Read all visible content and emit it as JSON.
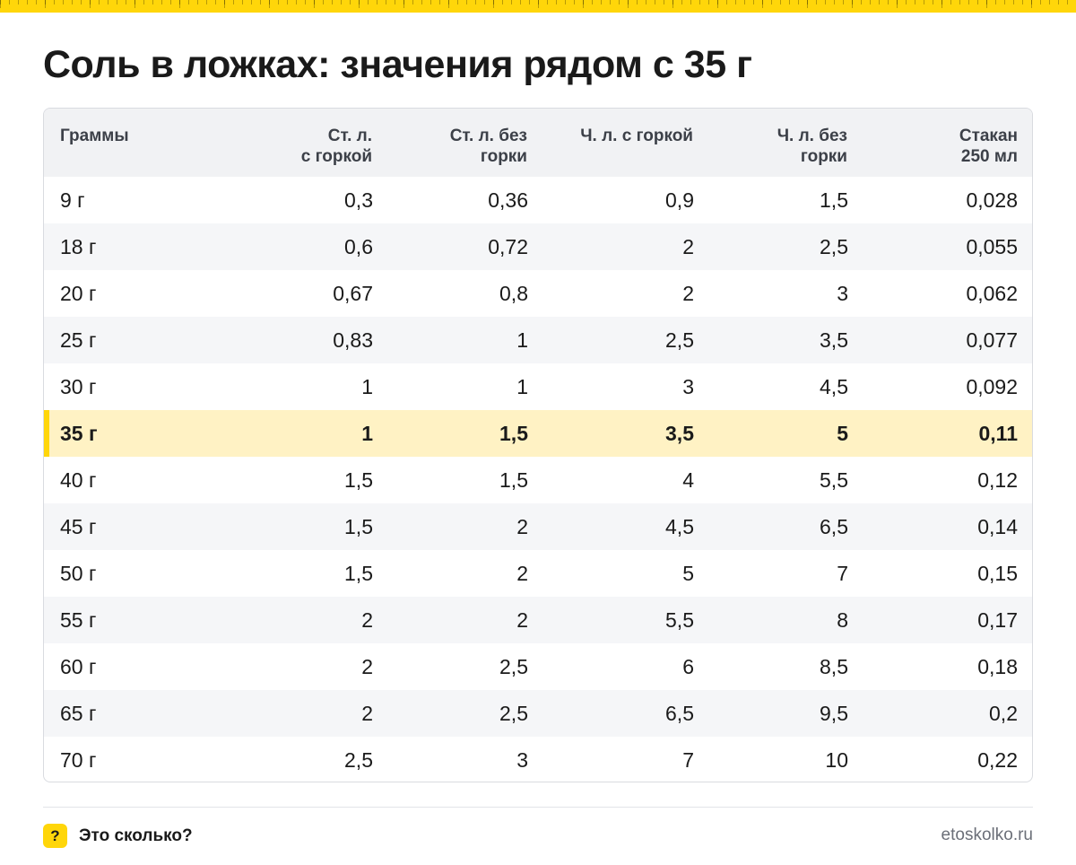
{
  "title": "Соль в ложках: значения рядом с 35 г",
  "table": {
    "headers": [
      [
        "Граммы"
      ],
      [
        "Ст. л.",
        "с горкой"
      ],
      [
        "Ст. л. без",
        "горки"
      ],
      [
        "Ч. л. с горкой"
      ],
      [
        "Ч. л. без",
        "горки"
      ],
      [
        "Стакан",
        "250 мл"
      ]
    ],
    "rows": [
      [
        "9 г",
        "0,3",
        "0,36",
        "0,9",
        "1,5",
        "0,028"
      ],
      [
        "18 г",
        "0,6",
        "0,72",
        "2",
        "2,5",
        "0,055"
      ],
      [
        "20 г",
        "0,67",
        "0,8",
        "2",
        "3",
        "0,062"
      ],
      [
        "25 г",
        "0,83",
        "1",
        "2,5",
        "3,5",
        "0,077"
      ],
      [
        "30 г",
        "1",
        "1",
        "3",
        "4,5",
        "0,092"
      ],
      [
        "35 г",
        "1",
        "1,5",
        "3,5",
        "5",
        "0,11"
      ],
      [
        "40 г",
        "1,5",
        "1,5",
        "4",
        "5,5",
        "0,12"
      ],
      [
        "45 г",
        "1,5",
        "2",
        "4,5",
        "6,5",
        "0,14"
      ],
      [
        "50 г",
        "1,5",
        "2",
        "5",
        "7",
        "0,15"
      ],
      [
        "55 г",
        "2",
        "2",
        "5,5",
        "8",
        "0,17"
      ],
      [
        "60 г",
        "2",
        "2,5",
        "6",
        "8,5",
        "0,18"
      ],
      [
        "65 г",
        "2",
        "2,5",
        "6,5",
        "9,5",
        "0,2"
      ],
      [
        "70 г",
        "2,5",
        "3",
        "7",
        "10",
        "0,22"
      ]
    ],
    "highlight_row": 5
  },
  "footer": {
    "icon": "question-mark-icon",
    "icon_glyph": "?",
    "brand": "Это сколько?",
    "site": "etoskolko.ru"
  },
  "colors": {
    "accent": "#ffd60a",
    "highlight_bg": "#fff2c4",
    "header_bg": "#f1f2f4",
    "stripe_bg": "#f5f6f8"
  }
}
